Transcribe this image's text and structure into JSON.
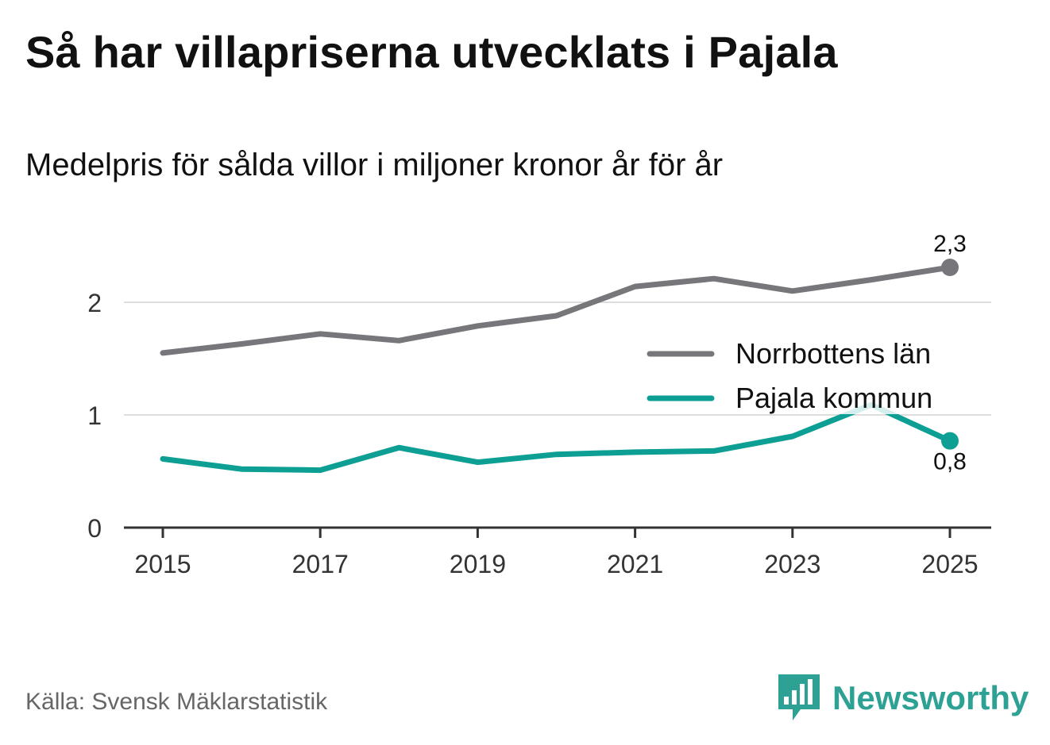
{
  "title": "Så har villapriserna utvecklats i Pajala",
  "subtitle": "Medelpris för sålda villor i miljoner kronor år för år",
  "source": "Källa: Svensk Mäklarstatistik",
  "brand": {
    "name": "Newsworthy",
    "logo_icon": "bar-chart-speech-bubble-icon"
  },
  "chart_data": {
    "type": "line",
    "title": "Så har villapriserna utvecklats i Pajala",
    "subtitle": "Medelpris för sålda villor i miljoner kronor år för år",
    "xlabel": "",
    "ylabel": "",
    "x": [
      2015,
      2016,
      2017,
      2018,
      2019,
      2020,
      2021,
      2022,
      2023,
      2024,
      2025
    ],
    "x_ticks": [
      "2015",
      "2017",
      "2019",
      "2021",
      "2023",
      "2025"
    ],
    "y_ticks": [
      "0",
      "1",
      "2"
    ],
    "xlim": [
      2014.5,
      2025.5
    ],
    "ylim": [
      0,
      2.5
    ],
    "grid": true,
    "legend_position": "right",
    "series": [
      {
        "name": "Norrbottens län",
        "color": "#77767b",
        "values": [
          1.55,
          1.63,
          1.72,
          1.66,
          1.79,
          1.88,
          2.14,
          2.21,
          2.1,
          2.2,
          2.31
        ],
        "end_label": "2,3"
      },
      {
        "name": "Pajala kommun",
        "color": "#0d9f94",
        "values": [
          0.61,
          0.52,
          0.51,
          0.71,
          0.58,
          0.65,
          0.67,
          0.68,
          0.81,
          1.09,
          0.77
        ],
        "end_label": "0,8"
      }
    ]
  }
}
